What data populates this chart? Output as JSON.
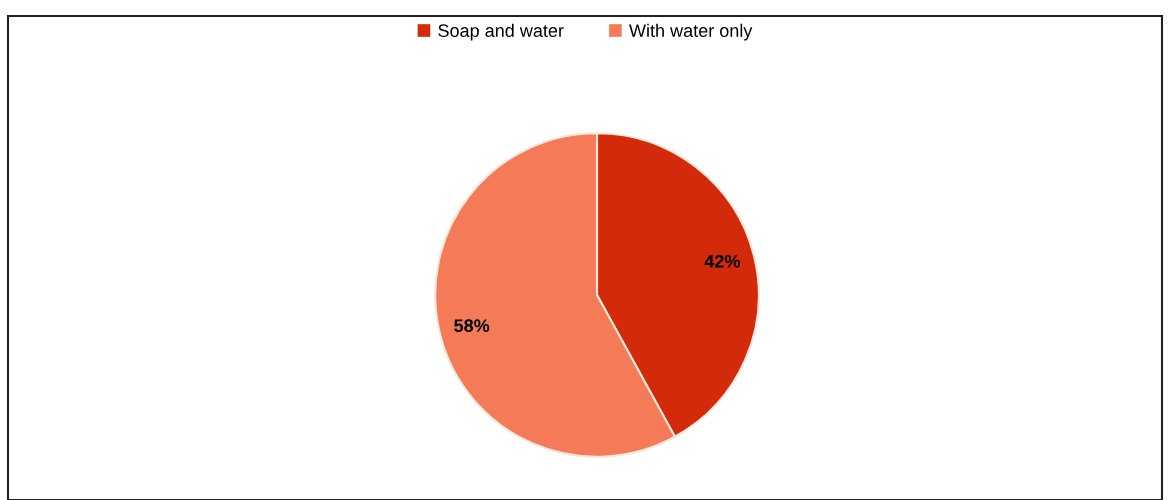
{
  "chart_data": {
    "type": "pie",
    "categories": [
      "Soap and water",
      "With water only"
    ],
    "values": [
      42,
      58
    ],
    "colors": [
      "#d42a0c",
      "#f47a58"
    ],
    "value_labels": [
      "42%",
      "58%"
    ],
    "legend": "top"
  }
}
